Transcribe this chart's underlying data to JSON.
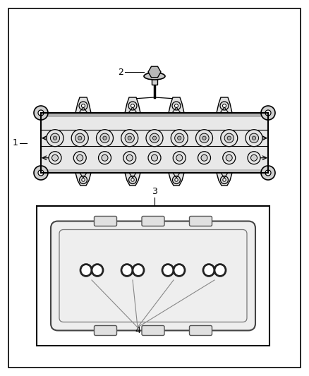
{
  "bg_color": "#ffffff",
  "line_color": "#000000",
  "gray_color": "#888888",
  "dark_gray": "#555555",
  "label_1": "1",
  "label_2": "2",
  "label_3": "3",
  "label_4": "4",
  "label_fontsize": 9
}
